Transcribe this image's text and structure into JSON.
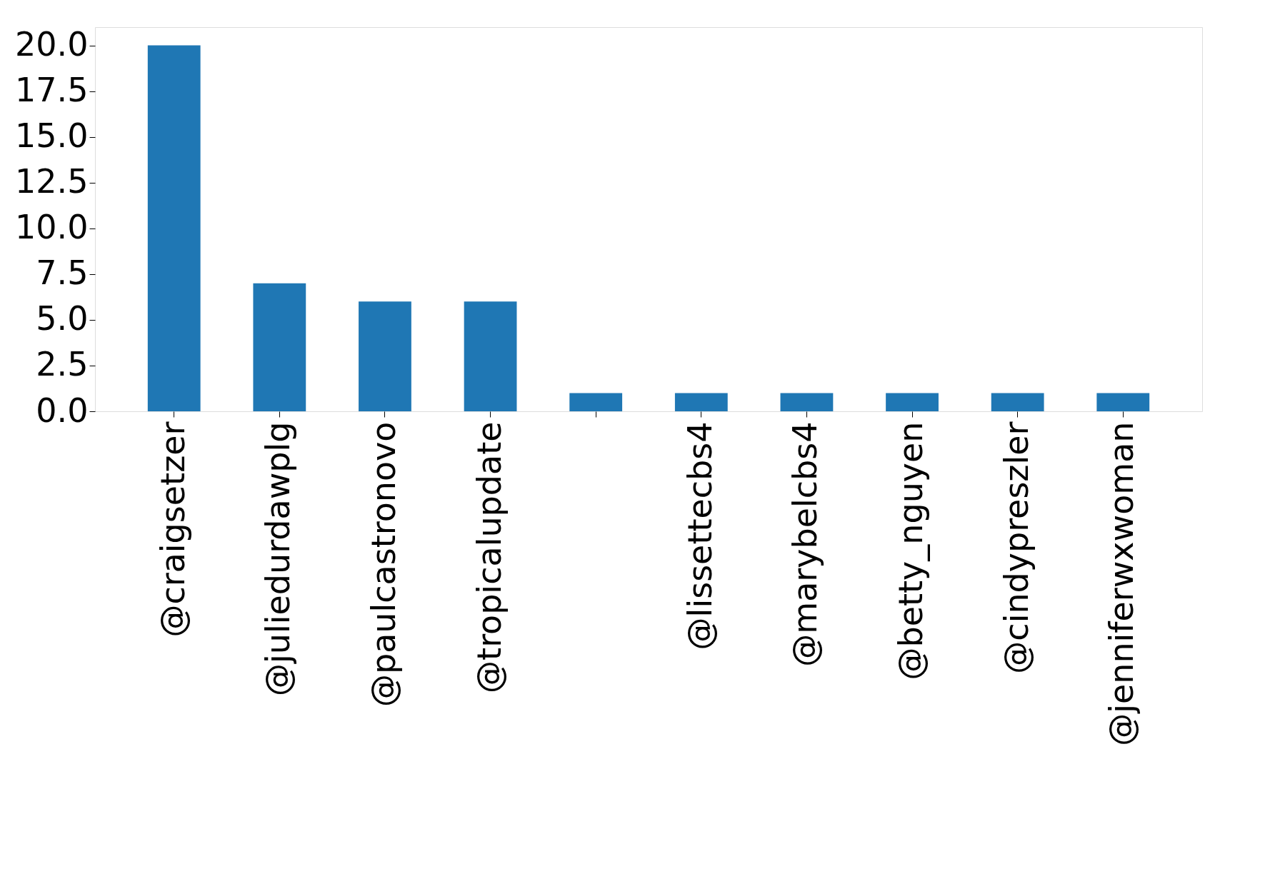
{
  "chart_data": {
    "type": "bar",
    "categories": [
      "@craigsetzer",
      "@juliedurdawplg",
      "@paulcastronovo",
      "@tropicalupdate",
      null,
      "@lissettecbs4",
      "@marybelcbs4",
      "@betty_nguyen",
      "@cindypreszler",
      "@jenniferwxwoman"
    ],
    "values": [
      20,
      7,
      6,
      6,
      1,
      1,
      1,
      1,
      1,
      1
    ],
    "color": "#1f77b4",
    "ylim": [
      0,
      21
    ],
    "yticks": [
      {
        "value": 0,
        "label": "0.0"
      },
      {
        "value": 2.5,
        "label": "2.5"
      },
      {
        "value": 5,
        "label": "5.0"
      },
      {
        "value": 7.5,
        "label": "7.5"
      },
      {
        "value": 10,
        "label": "10.0"
      },
      {
        "value": 12.5,
        "label": "12.5"
      },
      {
        "value": 15,
        "label": "15.0"
      },
      {
        "value": 17.5,
        "label": "17.5"
      },
      {
        "value": 20,
        "label": "20.0"
      }
    ],
    "grid": false
  }
}
